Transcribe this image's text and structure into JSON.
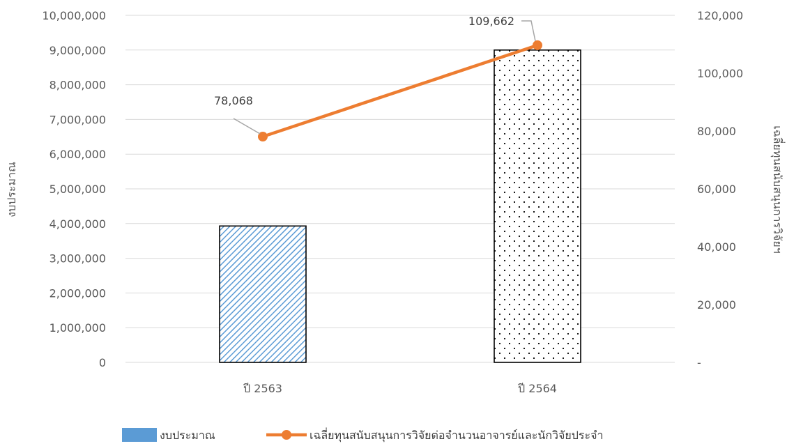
{
  "chart_data": {
    "type": "bar",
    "title": "",
    "categories": [
      "ปี 2563",
      "ปี 2564"
    ],
    "series": [
      {
        "name": "งบประมาณ",
        "type": "bar",
        "axis": "left",
        "values": [
          3930000,
          9000000
        ],
        "color": "#5B9BD5"
      },
      {
        "name": "เฉลี่ยทุนสนับสนุนการวิจัยต่อจำนวนอาจารย์และนักวิจัยประจำ",
        "type": "line",
        "axis": "right",
        "values": [
          78068,
          109662
        ],
        "color": "#ED7D31",
        "data_labels": [
          "78,068",
          "109,662"
        ]
      }
    ],
    "ylabel": "งบประมาณ",
    "y2label": "เฉลี่ยทุนสนับสนุนการวิจัยฯ",
    "ylim": [
      0,
      10000000
    ],
    "y2lim": [
      0,
      120000
    ],
    "yticks": [
      "0",
      "1,000,000",
      "2,000,000",
      "3,000,000",
      "4,000,000",
      "5,000,000",
      "6,000,000",
      "7,000,000",
      "8,000,000",
      "9,000,000",
      "10,000,000"
    ],
    "y2ticks": [
      "-",
      "20,000",
      "40,000",
      "60,000",
      "80,000",
      "100,000",
      "120,000"
    ],
    "grid": true,
    "legend": "bottom"
  }
}
